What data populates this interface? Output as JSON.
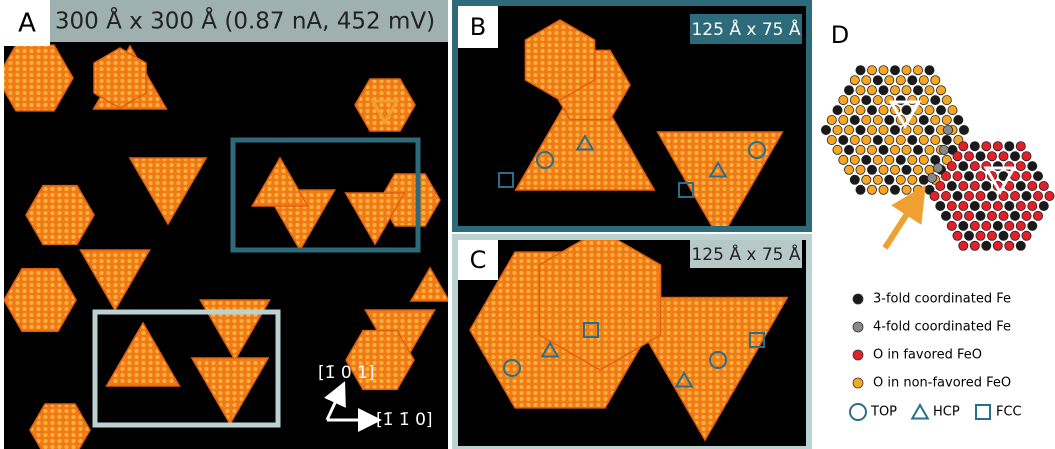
{
  "panels": {
    "a": {
      "label": "A",
      "title": "300 Å x 300 Å (0.87 nA, 452 mV)",
      "directions": [
        "[1̄ 0 1]",
        "[1̄ 1̄ 0]"
      ]
    },
    "b": {
      "label": "B",
      "scale": "125 Å x 75 Å"
    },
    "c": {
      "label": "C",
      "scale": "125 Å x 75 Å"
    },
    "d": {
      "label": "D",
      "legend": [
        "3-fold coordinated Fe",
        "4-fold coordinated Fe",
        "O in favored FeO",
        "O in non-favored FeO"
      ],
      "sites": [
        "TOP",
        "HCP",
        "FCC"
      ]
    }
  }
}
